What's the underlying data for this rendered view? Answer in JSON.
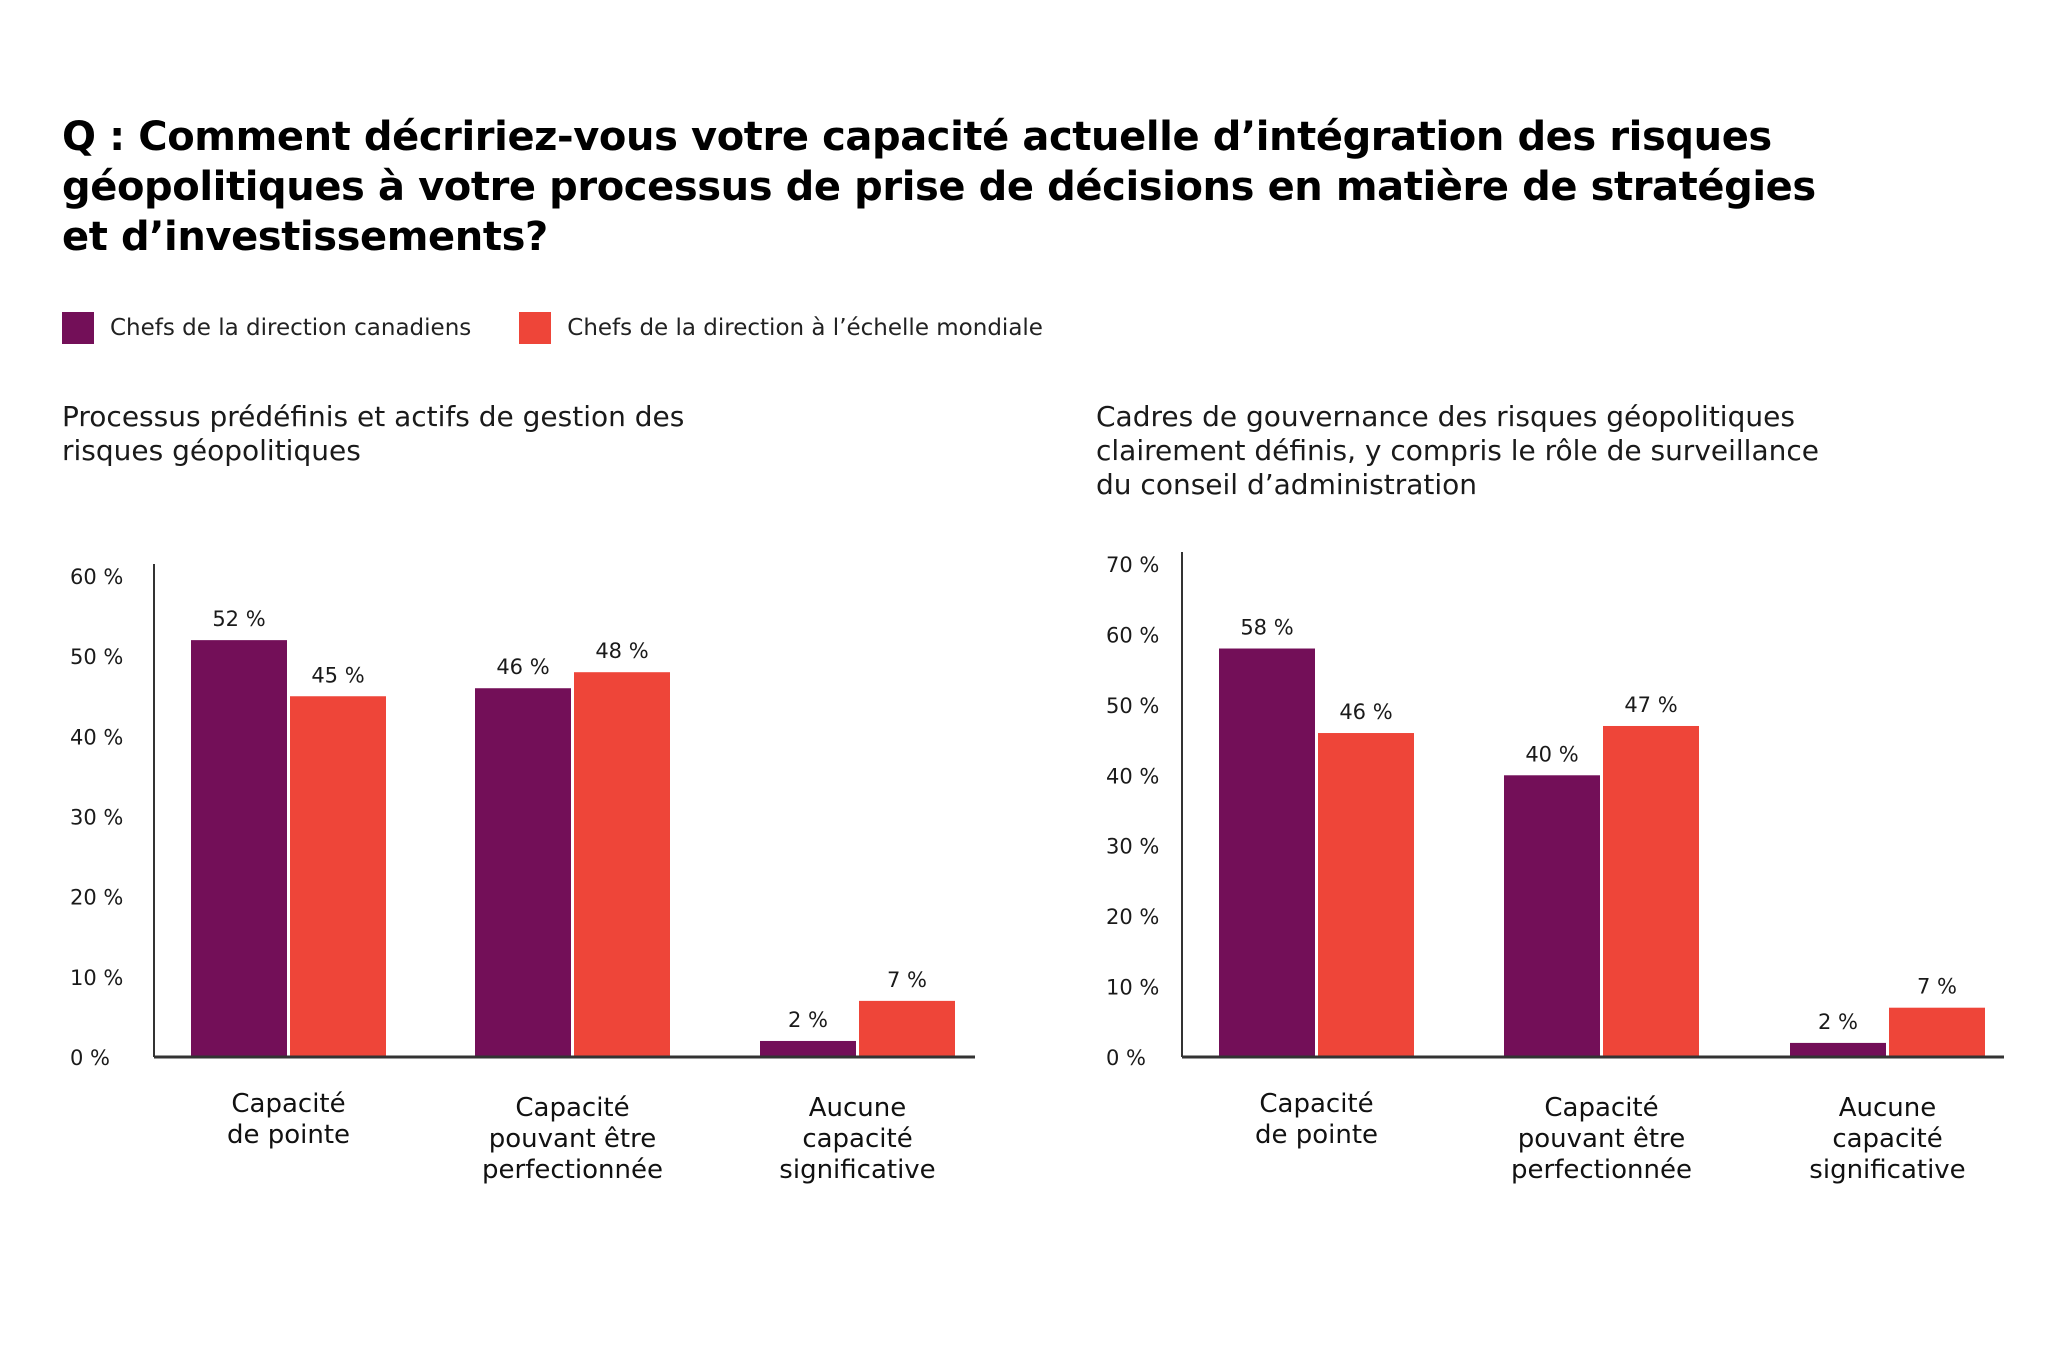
{
  "title": {
    "lines": [
      "Q : Comment décririez-vous votre capacité actuelle d’intégration des risques",
      "géopolitiques à votre processus de prise de décisions en matière de stratégies",
      "et d’investissements?"
    ]
  },
  "legend": [
    {
      "label": "Chefs de la direction canadiens",
      "color": "#730F58"
    },
    {
      "label": "Chefs de la direction à l’échelle mondiale",
      "color": "#EE4539"
    }
  ],
  "chart_data": [
    {
      "type": "bar",
      "title_lines": [
        "Processus prédéfinis et actifs de gestion des",
        "risques géopolitiques"
      ],
      "categories": [
        [
          "Capacité",
          "de pointe"
        ],
        [
          "Capacité",
          "pouvant être",
          "perfectionnée"
        ],
        [
          "Aucune",
          "capacité",
          "significative"
        ]
      ],
      "series": [
        {
          "name": "Chefs de la direction canadiens",
          "color": "#730F58",
          "values": [
            52,
            46,
            2
          ],
          "labels": [
            "52 %",
            "46 %",
            "2 %"
          ]
        },
        {
          "name": "Chefs de la direction à l’échelle mondiale",
          "color": "#EE4539",
          "values": [
            45,
            48,
            7
          ],
          "labels": [
            "45 %",
            "48 %",
            "7 %"
          ]
        }
      ],
      "yticks": [
        "0 %",
        "10 %",
        "20 %",
        "30 %",
        "40 %",
        "50 %",
        "60 %"
      ],
      "ytick_values": [
        0,
        10,
        20,
        30,
        40,
        50,
        60
      ],
      "ylim": [
        0,
        60
      ],
      "xlabel": "",
      "ylabel": "",
      "grid": false,
      "legend_position": "top-left"
    },
    {
      "type": "bar",
      "title_lines": [
        "Cadres de gouvernance des risques géopolitiques",
        "clairement définis, y compris le rôle de surveillance",
        "du conseil d’administration"
      ],
      "categories": [
        [
          "Capacité",
          "de pointe"
        ],
        [
          "Capacité",
          "pouvant être",
          "perfectionnée"
        ],
        [
          "Aucune",
          "capacité",
          "significative"
        ]
      ],
      "series": [
        {
          "name": "Chefs de la direction canadiens",
          "color": "#730F58",
          "values": [
            58,
            40,
            2
          ],
          "labels": [
            "58 %",
            "40 %",
            "2 %"
          ]
        },
        {
          "name": "Chefs de la direction à l’échelle mondiale",
          "color": "#EE4539",
          "values": [
            46,
            47,
            7
          ],
          "labels": [
            "46 %",
            "47 %",
            "7 %"
          ]
        }
      ],
      "yticks": [
        "0 %",
        "10 %",
        "20 %",
        "30 %",
        "40 %",
        "50 %",
        "60 %",
        "70 %"
      ],
      "ytick_values": [
        0,
        10,
        20,
        30,
        40,
        50,
        60,
        70
      ],
      "ylim": [
        0,
        70
      ],
      "xlabel": "",
      "ylabel": "",
      "grid": false,
      "legend_position": "top-left"
    }
  ]
}
